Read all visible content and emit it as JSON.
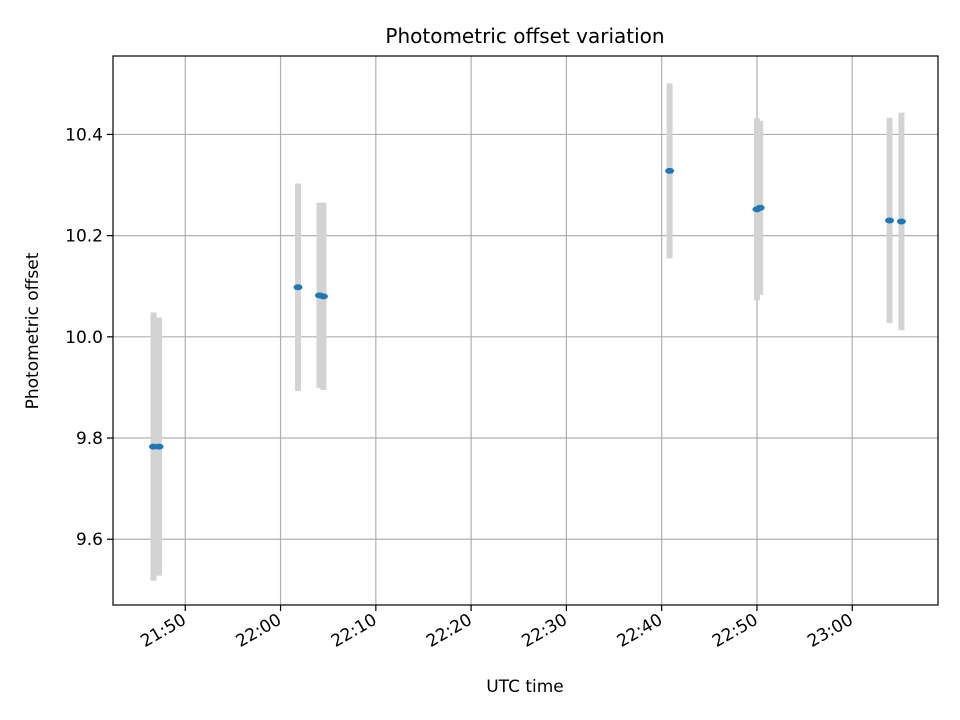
{
  "chart_data": {
    "type": "scatter",
    "title": "Photometric offset variation",
    "xlabel": "UTC time",
    "ylabel": "Photometric offset",
    "x_ticks": [
      "21:50",
      "22:00",
      "22:10",
      "22:20",
      "22:30",
      "22:40",
      "22:50",
      "23:00"
    ],
    "y_ticks": [
      "9.6",
      "9.8",
      "10.0",
      "10.2",
      "10.4"
    ],
    "xlim": [
      "21:42:25",
      "23:09:00"
    ],
    "ylim": [
      9.47,
      10.555
    ],
    "grid": true,
    "point_color": "#1f77b4",
    "errorbar_color": "#d3d3d3",
    "series": [
      {
        "points": [
          {
            "x": "21:46:40",
            "y": 9.783,
            "err": 0.265
          },
          {
            "x": "21:47:15",
            "y": 9.783,
            "err": 0.255
          },
          {
            "x": "22:01:50",
            "y": 10.098,
            "err": 0.205
          },
          {
            "x": "22:04:05",
            "y": 10.082,
            "err": 0.183
          },
          {
            "x": "22:04:30",
            "y": 10.08,
            "err": 0.185
          },
          {
            "x": "22:40:50",
            "y": 10.328,
            "err": 0.173
          },
          {
            "x": "22:50:00",
            "y": 10.252,
            "err": 0.18
          },
          {
            "x": "22:50:20",
            "y": 10.255,
            "err": 0.172
          },
          {
            "x": "23:03:55",
            "y": 10.23,
            "err": 0.203
          },
          {
            "x": "23:05:10",
            "y": 10.228,
            "err": 0.215
          }
        ]
      }
    ]
  }
}
